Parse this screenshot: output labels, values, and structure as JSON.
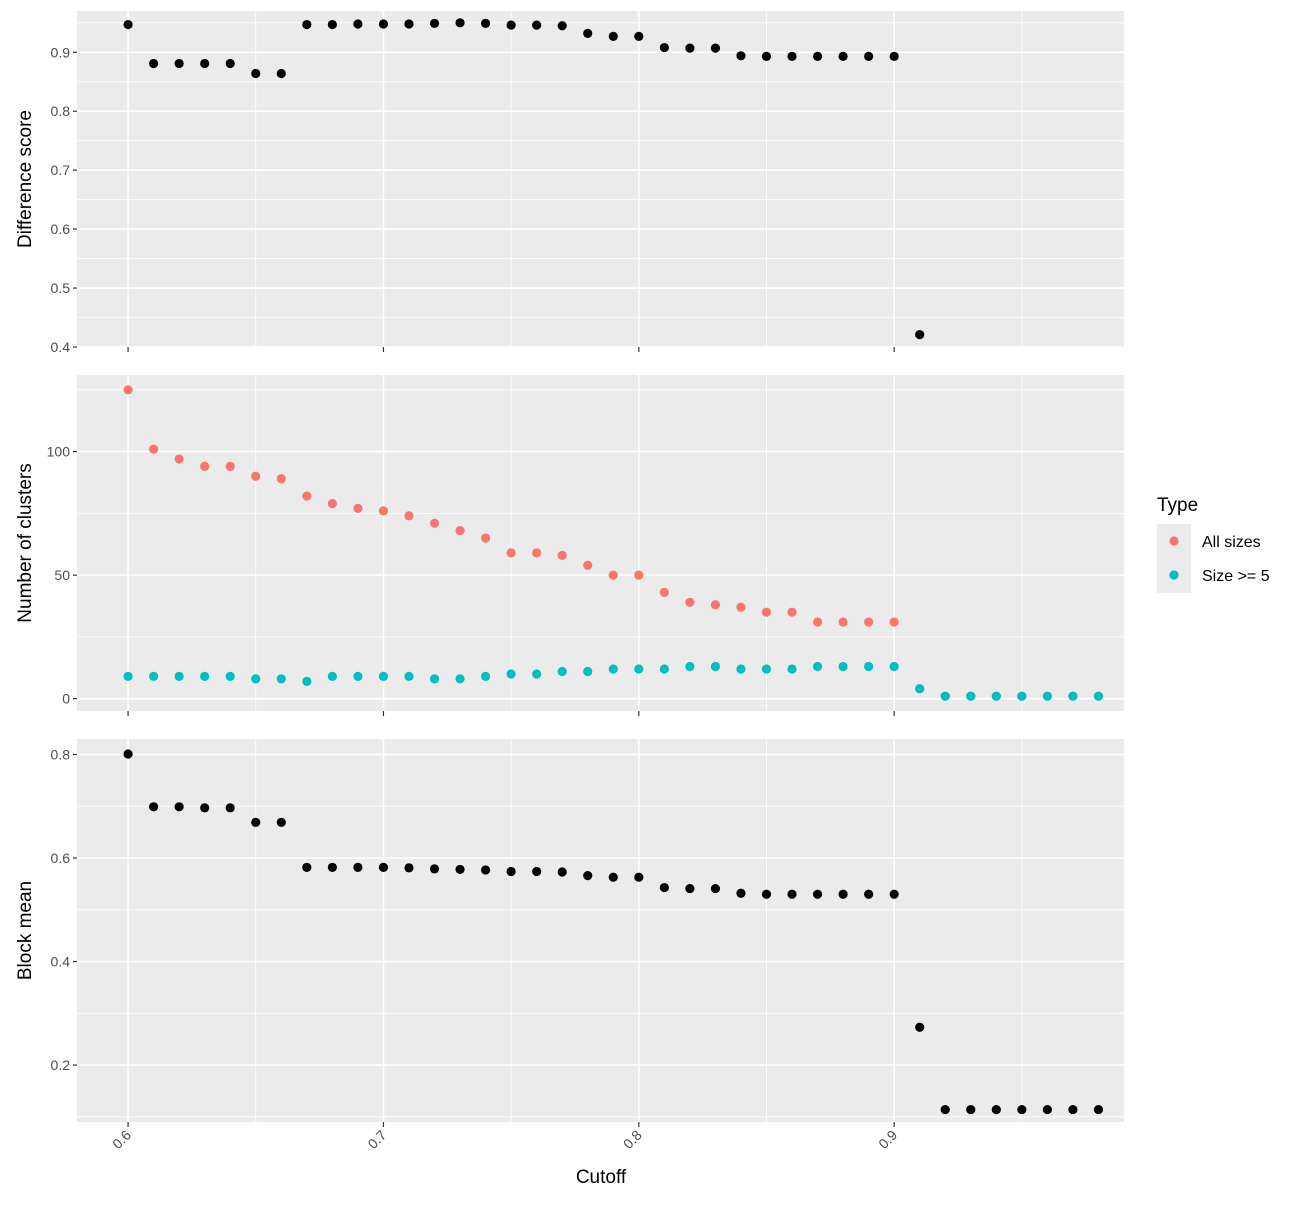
{
  "chart_data": {
    "type": "scatter",
    "x_label": "Cutoff",
    "x_range": [
      0.58,
      0.99
    ],
    "x_ticks": [
      "0.6",
      "0.7",
      "0.8",
      "0.9"
    ],
    "grid": true,
    "legend": {
      "title": "Type",
      "placement": "right",
      "items": [
        {
          "label": "All sizes",
          "color": "#F8766D"
        },
        {
          "label": "Size >= 5",
          "color": "#00BFC4"
        }
      ]
    },
    "panels": [
      {
        "name": "difference-score",
        "ylabel": "Difference score",
        "ylim": [
          0.4,
          0.97
        ],
        "y_ticks": [
          "0.4",
          "0.5",
          "0.6",
          "0.7",
          "0.8",
          "0.9"
        ],
        "series": [
          {
            "color": "#000000",
            "points": [
              [
                0.6,
                0.947
              ],
              [
                0.61,
                0.881
              ],
              [
                0.62,
                0.881
              ],
              [
                0.63,
                0.881
              ],
              [
                0.64,
                0.881
              ],
              [
                0.65,
                0.864
              ],
              [
                0.66,
                0.864
              ],
              [
                0.67,
                0.947
              ],
              [
                0.68,
                0.947
              ],
              [
                0.69,
                0.948
              ],
              [
                0.7,
                0.948
              ],
              [
                0.71,
                0.948
              ],
              [
                0.72,
                0.949
              ],
              [
                0.73,
                0.95
              ],
              [
                0.74,
                0.949
              ],
              [
                0.75,
                0.946
              ],
              [
                0.76,
                0.946
              ],
              [
                0.77,
                0.945
              ],
              [
                0.78,
                0.932
              ],
              [
                0.79,
                0.927
              ],
              [
                0.8,
                0.927
              ],
              [
                0.81,
                0.908
              ],
              [
                0.82,
                0.907
              ],
              [
                0.83,
                0.907
              ],
              [
                0.84,
                0.894
              ],
              [
                0.85,
                0.893
              ],
              [
                0.86,
                0.893
              ],
              [
                0.87,
                0.893
              ],
              [
                0.88,
                0.893
              ],
              [
                0.89,
                0.893
              ],
              [
                0.9,
                0.893
              ],
              [
                0.91,
                0.421
              ]
            ]
          }
        ]
      },
      {
        "name": "number-of-clusters",
        "ylabel": "Number of clusters",
        "ylim": [
          -5,
          131
        ],
        "y_ticks": [
          "0",
          "50",
          "100"
        ],
        "series": [
          {
            "name": "All sizes",
            "color": "#F8766D",
            "points": [
              [
                0.6,
                125
              ],
              [
                0.61,
                101
              ],
              [
                0.62,
                97
              ],
              [
                0.63,
                94
              ],
              [
                0.64,
                94
              ],
              [
                0.65,
                90
              ],
              [
                0.66,
                89
              ],
              [
                0.67,
                82
              ],
              [
                0.68,
                79
              ],
              [
                0.69,
                77
              ],
              [
                0.7,
                76
              ],
              [
                0.71,
                74
              ],
              [
                0.72,
                71
              ],
              [
                0.73,
                68
              ],
              [
                0.74,
                65
              ],
              [
                0.75,
                59
              ],
              [
                0.76,
                59
              ],
              [
                0.77,
                58
              ],
              [
                0.78,
                54
              ],
              [
                0.79,
                50
              ],
              [
                0.8,
                50
              ],
              [
                0.81,
                43
              ],
              [
                0.82,
                39
              ],
              [
                0.83,
                38
              ],
              [
                0.84,
                37
              ],
              [
                0.85,
                35
              ],
              [
                0.86,
                35
              ],
              [
                0.87,
                31
              ],
              [
                0.88,
                31
              ],
              [
                0.89,
                31
              ],
              [
                0.9,
                31
              ],
              [
                0.91,
                4
              ],
              [
                0.92,
                1
              ],
              [
                0.93,
                1
              ],
              [
                0.94,
                1
              ],
              [
                0.95,
                1
              ],
              [
                0.96,
                1
              ],
              [
                0.97,
                1
              ],
              [
                0.98,
                1
              ]
            ]
          },
          {
            "name": "Size >= 5",
            "color": "#00BFC4",
            "points": [
              [
                0.6,
                9
              ],
              [
                0.61,
                9
              ],
              [
                0.62,
                9
              ],
              [
                0.63,
                9
              ],
              [
                0.64,
                9
              ],
              [
                0.65,
                8
              ],
              [
                0.66,
                8
              ],
              [
                0.67,
                7
              ],
              [
                0.68,
                9
              ],
              [
                0.69,
                9
              ],
              [
                0.7,
                9
              ],
              [
                0.71,
                9
              ],
              [
                0.72,
                8
              ],
              [
                0.73,
                8
              ],
              [
                0.74,
                9
              ],
              [
                0.75,
                10
              ],
              [
                0.76,
                10
              ],
              [
                0.77,
                11
              ],
              [
                0.78,
                11
              ],
              [
                0.79,
                12
              ],
              [
                0.8,
                12
              ],
              [
                0.81,
                12
              ],
              [
                0.82,
                13
              ],
              [
                0.83,
                13
              ],
              [
                0.84,
                12
              ],
              [
                0.85,
                12
              ],
              [
                0.86,
                12
              ],
              [
                0.87,
                13
              ],
              [
                0.88,
                13
              ],
              [
                0.89,
                13
              ],
              [
                0.9,
                13
              ],
              [
                0.91,
                4
              ],
              [
                0.92,
                1
              ],
              [
                0.93,
                1
              ],
              [
                0.94,
                1
              ],
              [
                0.95,
                1
              ],
              [
                0.96,
                1
              ],
              [
                0.97,
                1
              ],
              [
                0.98,
                1
              ]
            ]
          }
        ]
      },
      {
        "name": "block-mean",
        "ylabel": "Block mean",
        "ylim": [
          0.09,
          0.83
        ],
        "y_ticks": [
          "0.2",
          "0.4",
          "0.6",
          "0.8"
        ],
        "series": [
          {
            "color": "#000000",
            "points": [
              [
                0.6,
                0.801
              ],
              [
                0.61,
                0.699
              ],
              [
                0.62,
                0.699
              ],
              [
                0.63,
                0.697
              ],
              [
                0.64,
                0.697
              ],
              [
                0.65,
                0.669
              ],
              [
                0.66,
                0.669
              ],
              [
                0.67,
                0.582
              ],
              [
                0.68,
                0.582
              ],
              [
                0.69,
                0.582
              ],
              [
                0.7,
                0.582
              ],
              [
                0.71,
                0.581
              ],
              [
                0.72,
                0.579
              ],
              [
                0.73,
                0.578
              ],
              [
                0.74,
                0.577
              ],
              [
                0.75,
                0.574
              ],
              [
                0.76,
                0.574
              ],
              [
                0.77,
                0.573
              ],
              [
                0.78,
                0.566
              ],
              [
                0.79,
                0.563
              ],
              [
                0.8,
                0.563
              ],
              [
                0.81,
                0.543
              ],
              [
                0.82,
                0.541
              ],
              [
                0.83,
                0.541
              ],
              [
                0.84,
                0.532
              ],
              [
                0.85,
                0.53
              ],
              [
                0.86,
                0.53
              ],
              [
                0.87,
                0.53
              ],
              [
                0.88,
                0.53
              ],
              [
                0.89,
                0.53
              ],
              [
                0.9,
                0.53
              ],
              [
                0.91,
                0.273
              ],
              [
                0.92,
                0.114
              ],
              [
                0.93,
                0.114
              ],
              [
                0.94,
                0.114
              ],
              [
                0.95,
                0.114
              ],
              [
                0.96,
                0.114
              ],
              [
                0.97,
                0.114
              ],
              [
                0.98,
                0.114
              ]
            ]
          }
        ]
      }
    ]
  }
}
